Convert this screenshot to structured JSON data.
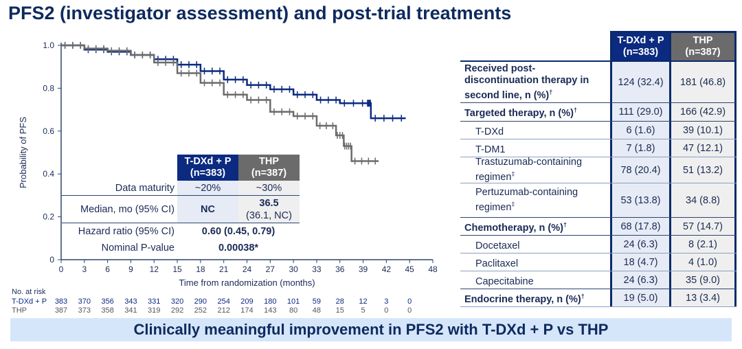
{
  "title": "PFS2 (investigator assessment) and post-trial treatments",
  "chart_data": {
    "type": "line",
    "subtype": "kaplan-meier",
    "xlabel": "Time from randomization (months)",
    "ylabel": "Probability of PFS",
    "xlim": [
      0,
      48
    ],
    "ylim": [
      0,
      1.0
    ],
    "xticks": [
      0,
      3,
      6,
      9,
      12,
      15,
      18,
      21,
      24,
      27,
      30,
      33,
      36,
      39,
      42,
      45,
      48
    ],
    "yticks": [
      "0",
      "0.2",
      "0.4",
      "0.6",
      "0.8",
      "1.0"
    ],
    "grid": false,
    "series": [
      {
        "name": "T-DXd + P",
        "color": "#0b2a80",
        "x": [
          0,
          3,
          6,
          9,
          12,
          15,
          18,
          21,
          24,
          27,
          30,
          33,
          36,
          39.5,
          40,
          44.5
        ],
        "y": [
          1.0,
          0.98,
          0.97,
          0.955,
          0.935,
          0.91,
          0.88,
          0.84,
          0.815,
          0.795,
          0.77,
          0.745,
          0.73,
          0.73,
          0.66,
          0.66
        ]
      },
      {
        "name": "THP",
        "color": "#6b6b6b",
        "x": [
          0,
          3,
          6,
          9,
          12,
          15,
          18,
          21,
          24,
          27,
          30,
          33,
          35.5,
          36.5,
          37.5,
          41
        ],
        "y": [
          1.0,
          0.985,
          0.975,
          0.955,
          0.92,
          0.87,
          0.825,
          0.77,
          0.745,
          0.69,
          0.67,
          0.625,
          0.58,
          0.53,
          0.46,
          0.46
        ]
      }
    ]
  },
  "inset": {
    "col1": [
      "T-DXd + P",
      "(n=383)"
    ],
    "col2": [
      "THP",
      "(n=387)"
    ],
    "rows": [
      {
        "label": "Data maturity",
        "v1": "~20%",
        "v2": "~30%"
      },
      {
        "label": "Median, mo (95% CI)",
        "v1": "NC",
        "v2": "36.5",
        "v2b": "(36.1, NC)"
      },
      {
        "label": "Hazard ratio (95% CI)",
        "v": "0.60 (0.45, 0.79)"
      },
      {
        "label": "Nominal P-value",
        "v": "0.00038*"
      }
    ]
  },
  "at_risk": {
    "title": "No. at risk",
    "rows": [
      {
        "label": "T-DXd + P",
        "values": [
          "383",
          "370",
          "356",
          "343",
          "331",
          "320",
          "290",
          "254",
          "209",
          "180",
          "101",
          "59",
          "28",
          "12",
          "3",
          "0"
        ]
      },
      {
        "label": "THP",
        "values": [
          "387",
          "373",
          "358",
          "341",
          "319",
          "292",
          "252",
          "212",
          "174",
          "143",
          "80",
          "48",
          "15",
          "5",
          "0",
          "0"
        ]
      }
    ]
  },
  "table": {
    "col1": [
      "T-DXd + P",
      "(n=383)"
    ],
    "col2": [
      "THP",
      "(n=387)"
    ],
    "rows": [
      {
        "label": "Received post-discontinuation therapy in second line, n (%)",
        "mark": "†",
        "v1": "124 (32.4)",
        "v2": "181 (46.8)",
        "bold": true
      },
      {
        "label": "Targeted therapy, n (%)",
        "mark": "†",
        "v1": "111 (29.0)",
        "v2": "166 (42.9)",
        "bold": true
      },
      {
        "label": "T-DXd",
        "mark": "",
        "v1": "6 (1.6)",
        "v2": "39 (10.1)"
      },
      {
        "label": "T-DM1",
        "mark": "",
        "v1": "7 (1.8)",
        "v2": "47 (12.1)"
      },
      {
        "label": "Trastuzumab-containing regimen",
        "mark": "‡",
        "v1": "78 (20.4)",
        "v2": "51 (13.2)"
      },
      {
        "label": "Pertuzumab-containing regimen",
        "mark": "‡",
        "v1": "53 (13.8)",
        "v2": "34 (8.8)"
      },
      {
        "label": "Chemotherapy, n (%)",
        "mark": "†",
        "v1": "68 (17.8)",
        "v2": "57 (14.7)",
        "bold": true
      },
      {
        "label": "Docetaxel",
        "mark": "",
        "v1": "24 (6.3)",
        "v2": "8 (2.1)"
      },
      {
        "label": "Paclitaxel",
        "mark": "",
        "v1": "18 (4.7)",
        "v2": "4 (1.0)"
      },
      {
        "label": "Capecitabine",
        "mark": "",
        "v1": "24 (6.3)",
        "v2": "35 (9.0)"
      },
      {
        "label": "Endocrine therapy, n (%)",
        "mark": "†",
        "v1": "19 (5.0)",
        "v2": "13 (3.4)",
        "bold": true
      }
    ]
  },
  "banner": "Clinically meaningful improvement in PFS2 with T-DXd + P vs THP"
}
